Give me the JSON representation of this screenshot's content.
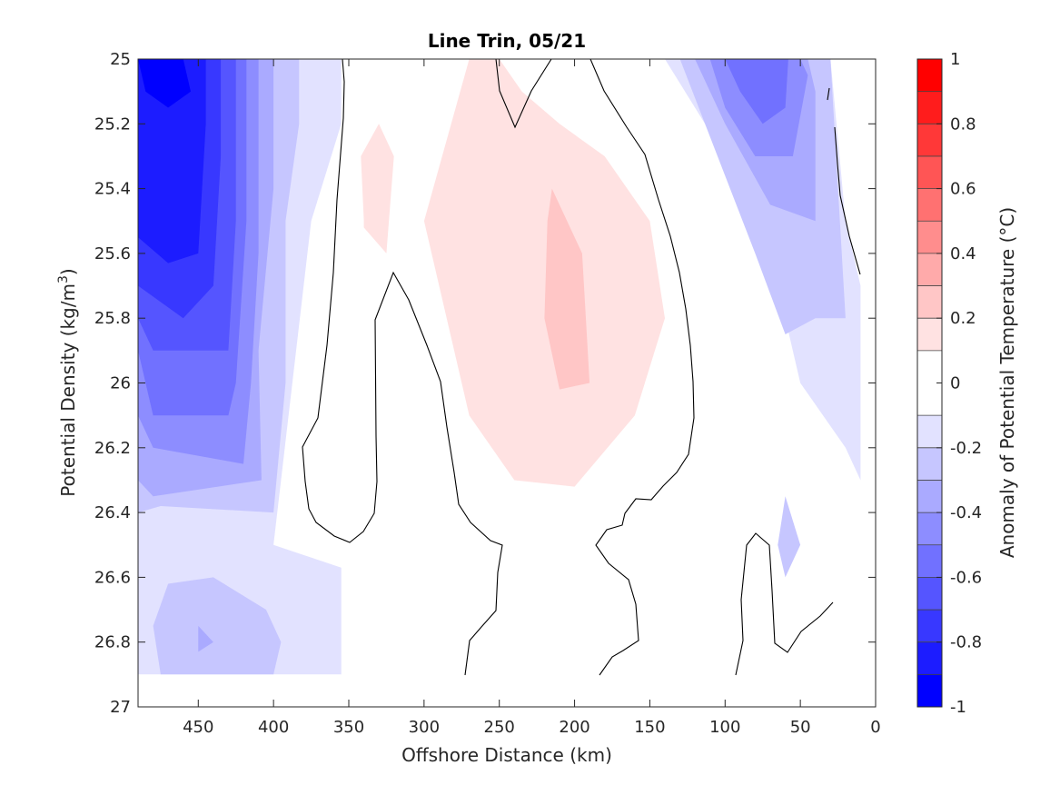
{
  "chart_data": {
    "type": "heatmap",
    "title": "Line Trin, 05/21",
    "xlabel": "Offshore Distance (km)",
    "ylabel_main": "Potential Density (kg/m",
    "ylabel_sup": "3",
    "ylabel_end": ")",
    "xlim": [
      490,
      0
    ],
    "ylim": [
      25,
      27
    ],
    "x_ticks": [
      450,
      400,
      350,
      300,
      250,
      200,
      150,
      100,
      50,
      0
    ],
    "y_ticks": [
      25,
      25.2,
      25.4,
      25.6,
      25.8,
      26,
      26.2,
      26.4,
      26.6,
      26.8,
      27
    ],
    "x_tick_labels": [
      "450",
      "400",
      "350",
      "300",
      "250",
      "200",
      "150",
      "100",
      "50",
      "0"
    ],
    "y_tick_labels": [
      "25",
      "25.2",
      "25.4",
      "25.6",
      "25.8",
      "26",
      "26.2",
      "26.4",
      "26.6",
      "26.8",
      "27"
    ],
    "colorbar": {
      "label": "Anomaly of Potential Temperature (°C)",
      "ticks": [
        1,
        0.8,
        0.6,
        0.4,
        0.2,
        0,
        -0.2,
        -0.4,
        -0.6,
        -0.8,
        -1
      ],
      "tick_labels": [
        "1",
        "0.8",
        "0.6",
        "0.4",
        "0.2",
        "0",
        "-0.2",
        "-0.4",
        "-0.6",
        "-0.8",
        "-1"
      ],
      "levels": [
        -1,
        -0.9,
        -0.8,
        -0.7,
        -0.6,
        -0.5,
        -0.4,
        -0.3,
        -0.2,
        -0.1,
        0.1,
        0.2,
        0.3,
        0.4,
        0.5,
        0.6,
        0.7,
        0.8,
        0.9,
        1
      ],
      "colors": [
        "#0000ff",
        "#1c1cff",
        "#3838ff",
        "#5555ff",
        "#7171ff",
        "#8d8dff",
        "#aaaaff",
        "#c6c6ff",
        "#e2e2ff",
        "#ffffff",
        "#ffe2e2",
        "#ffc6c6",
        "#ffaaaa",
        "#ff8d8d",
        "#ff7171",
        "#ff5555",
        "#ff3838",
        "#ff1c1c",
        "#ff0000"
      ]
    },
    "grid": false,
    "filled_regions": [
      {
        "anomaly": -0.15,
        "pts": [
          [
            490,
            25
          ],
          [
            355,
            25
          ],
          [
            355,
            25.2
          ],
          [
            375,
            25.5
          ],
          [
            400,
            26.5
          ],
          [
            355,
            26.57
          ],
          [
            355,
            26.9
          ],
          [
            490,
            26.9
          ]
        ]
      },
      {
        "anomaly": -0.25,
        "pts": [
          [
            490,
            25
          ],
          [
            383,
            25
          ],
          [
            383,
            25.2
          ],
          [
            392,
            25.5
          ],
          [
            392,
            26
          ],
          [
            400,
            26.4
          ],
          [
            475,
            26.38
          ],
          [
            490,
            26.4
          ]
        ]
      },
      {
        "anomaly": -0.25,
        "pts": [
          [
            470,
            26.62
          ],
          [
            440,
            26.6
          ],
          [
            405,
            26.7
          ],
          [
            395,
            26.8
          ],
          [
            400,
            26.9
          ],
          [
            475,
            26.9
          ],
          [
            480,
            26.75
          ]
        ]
      },
      {
        "anomaly": -0.35,
        "pts": [
          [
            490,
            25
          ],
          [
            400,
            25
          ],
          [
            400,
            25.4
          ],
          [
            410,
            25.9
          ],
          [
            408,
            26.3
          ],
          [
            480,
            26.35
          ],
          [
            490,
            26.3
          ]
        ]
      },
      {
        "anomaly": -0.35,
        "pts": [
          [
            450,
            26.75
          ],
          [
            440,
            26.8
          ],
          [
            450,
            26.83
          ]
        ]
      },
      {
        "anomaly": -0.45,
        "pts": [
          [
            490,
            25
          ],
          [
            410,
            25
          ],
          [
            410,
            25.6
          ],
          [
            415,
            26
          ],
          [
            420,
            26.25
          ],
          [
            480,
            26.2
          ],
          [
            490,
            26.1
          ]
        ]
      },
      {
        "anomaly": -0.55,
        "pts": [
          [
            490,
            25
          ],
          [
            418,
            25
          ],
          [
            418,
            25.5
          ],
          [
            425,
            26
          ],
          [
            430,
            26.1
          ],
          [
            480,
            26.1
          ],
          [
            490,
            25.9
          ]
        ]
      },
      {
        "anomaly": -0.65,
        "pts": [
          [
            490,
            25
          ],
          [
            425,
            25
          ],
          [
            425,
            25.5
          ],
          [
            430,
            25.9
          ],
          [
            480,
            25.9
          ],
          [
            490,
            25.8
          ]
        ]
      },
      {
        "anomaly": -0.75,
        "pts": [
          [
            490,
            25
          ],
          [
            435,
            25
          ],
          [
            435,
            25.3
          ],
          [
            440,
            25.7
          ],
          [
            460,
            25.8
          ],
          [
            490,
            25.7
          ]
        ]
      },
      {
        "anomaly": -0.85,
        "pts": [
          [
            490,
            25
          ],
          [
            445,
            25
          ],
          [
            445,
            25.2
          ],
          [
            450,
            25.6
          ],
          [
            470,
            25.63
          ],
          [
            490,
            25.55
          ]
        ]
      },
      {
        "anomaly": -0.95,
        "pts": [
          [
            490,
            25
          ],
          [
            460,
            25
          ],
          [
            455,
            25.1
          ],
          [
            470,
            25.15
          ],
          [
            485,
            25.1
          ]
        ]
      },
      {
        "anomaly": 0.15,
        "pts": [
          [
            340,
            25.5
          ],
          [
            342,
            25.3
          ],
          [
            330,
            25.2
          ],
          [
            320,
            25.3
          ],
          [
            325,
            25.6
          ],
          [
            340,
            25.52
          ]
        ]
      },
      {
        "anomaly": 0.15,
        "pts": [
          [
            270,
            25
          ],
          [
            300,
            25.5
          ],
          [
            270,
            26.1
          ],
          [
            240,
            26.3
          ],
          [
            200,
            26.32
          ],
          [
            160,
            26.1
          ],
          [
            140,
            25.8
          ],
          [
            150,
            25.5
          ],
          [
            180,
            25.3
          ],
          [
            210,
            25.2
          ],
          [
            235,
            25.1
          ],
          [
            250,
            25
          ]
        ]
      },
      {
        "anomaly": 0.25,
        "pts": [
          [
            215,
            25.4
          ],
          [
            195,
            25.6
          ],
          [
            190,
            26
          ],
          [
            210,
            26.02
          ],
          [
            220,
            25.8
          ],
          [
            218,
            25.5
          ]
        ]
      },
      {
        "anomaly": -0.15,
        "pts": [
          [
            140,
            25
          ],
          [
            100,
            25.3
          ],
          [
            70,
            25.6
          ],
          [
            50,
            26
          ],
          [
            20,
            26.2
          ],
          [
            10,
            26.3
          ],
          [
            10,
            25.7
          ],
          [
            20,
            25.5
          ],
          [
            30,
            25
          ]
        ]
      },
      {
        "anomaly": -0.25,
        "pts": [
          [
            130,
            25
          ],
          [
            105,
            25.3
          ],
          [
            80,
            25.6
          ],
          [
            60,
            25.85
          ],
          [
            40,
            25.8
          ],
          [
            20,
            25.8
          ],
          [
            30,
            25
          ]
        ]
      },
      {
        "anomaly": -0.35,
        "pts": [
          [
            120,
            25
          ],
          [
            100,
            25.2
          ],
          [
            70,
            25.45
          ],
          [
            40,
            25.5
          ],
          [
            40,
            25.1
          ],
          [
            45,
            25
          ]
        ]
      },
      {
        "anomaly": -0.45,
        "pts": [
          [
            110,
            25
          ],
          [
            100,
            25.15
          ],
          [
            80,
            25.3
          ],
          [
            55,
            25.3
          ],
          [
            45,
            25.05
          ],
          [
            50,
            25
          ]
        ]
      },
      {
        "anomaly": -0.55,
        "pts": [
          [
            100,
            25
          ],
          [
            90,
            25.1
          ],
          [
            75,
            25.2
          ],
          [
            60,
            25.15
          ],
          [
            58,
            25
          ]
        ]
      },
      {
        "anomaly": -0.2,
        "pts": [
          [
            60,
            26.35
          ],
          [
            50,
            26.5
          ],
          [
            60,
            26.6
          ],
          [
            65,
            26.5
          ]
        ]
      }
    ],
    "contour_lines": [
      [
        [
          351,
          25
        ],
        [
          354,
          25.1
        ],
        [
          352,
          25.4
        ],
        [
          356,
          25.8
        ],
        [
          366,
          26.0
        ],
        [
          380,
          26.2
        ],
        [
          367,
          26.4
        ],
        [
          350,
          26.47
        ],
        [
          338,
          26.5
        ],
        [
          330,
          26.4
        ],
        [
          325,
          26.2
        ],
        [
          320,
          25.8
        ],
        [
          322,
          25.7
        ],
        [
          310,
          25.65
        ],
        [
          292,
          25.8
        ],
        [
          290,
          26.0
        ],
        [
          287,
          26.2
        ],
        [
          278,
          26.5
        ],
        [
          272,
          26.6
        ],
        [
          262,
          26.85
        ],
        [
          255,
          26.9
        ]
      ]
    ]
  }
}
